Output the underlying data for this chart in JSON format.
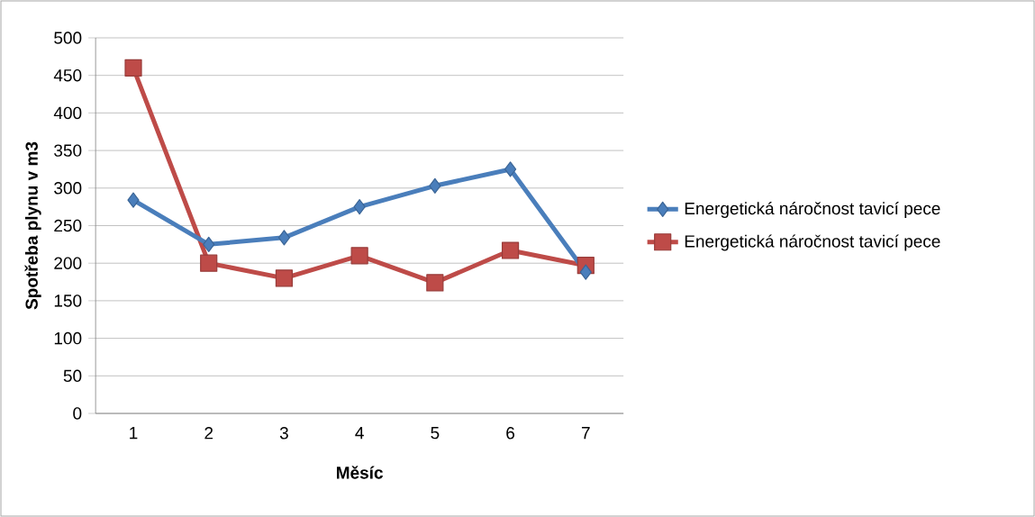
{
  "chart_data": {
    "type": "line",
    "xlabel": "Měsíc",
    "ylabel": "Spotřeba plynu v m3",
    "categories": [
      "1",
      "2",
      "3",
      "4",
      "5",
      "6",
      "7"
    ],
    "ylim": [
      0,
      500
    ],
    "yticks": [
      0,
      50,
      100,
      150,
      200,
      250,
      300,
      350,
      400,
      450,
      500
    ],
    "grid": "y",
    "legend": "right",
    "series": [
      {
        "name": "Energetická náročnost tavicí pece",
        "color": "#4a7ebb",
        "marker": "diamond",
        "values": [
          284,
          225,
          234,
          275,
          303,
          325,
          188
        ]
      },
      {
        "name": "Energetická náročnost tavicí pece",
        "color": "#be4b48",
        "marker": "square",
        "values": [
          460,
          200,
          180,
          210,
          174,
          217,
          197
        ]
      }
    ]
  }
}
